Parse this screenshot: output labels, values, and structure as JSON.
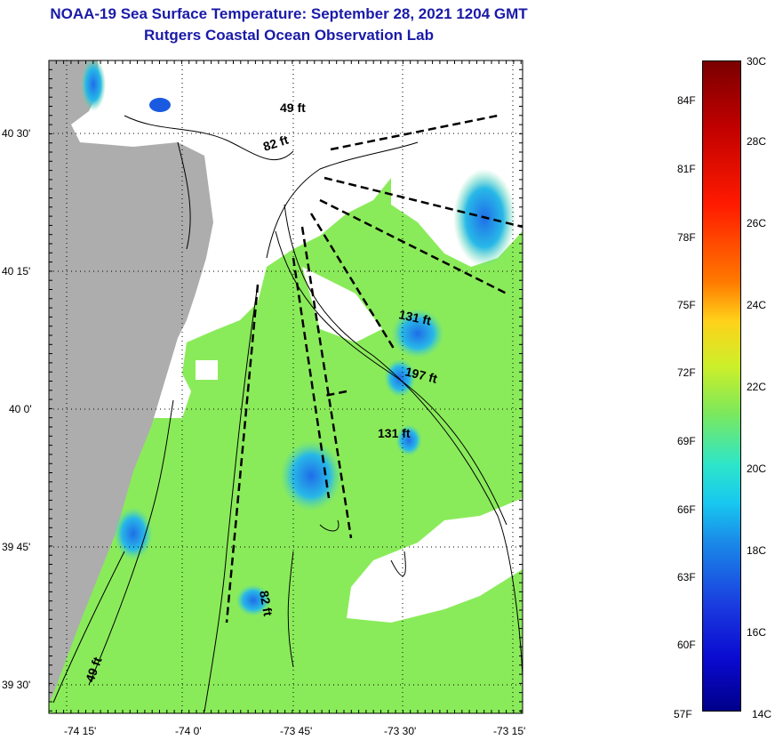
{
  "title": {
    "line1": "NOAA-19 Sea Surface Temperature:  September 28, 2021 1204 GMT",
    "line2": "Rutgers Coastal Ocean Observation Lab"
  },
  "map": {
    "lat_labels": [
      "40 30'",
      "40 15'",
      "40 0'",
      "39 45'",
      "39 30'"
    ],
    "lon_labels": [
      "-74 15'",
      "-74 0'",
      "-73 45'",
      "-73 30'",
      "-73 15'"
    ],
    "depth_labels": [
      "49 ft",
      "82 ft",
      "131 ft",
      "197 ft",
      "131 ft",
      "82 ft",
      "49 ft"
    ]
  },
  "colorbar": {
    "celsius": [
      "30C",
      "28C",
      "26C",
      "24C",
      "22C",
      "20C",
      "18C",
      "16C",
      "14C"
    ],
    "fahrenheit": [
      "84F",
      "81F",
      "78F",
      "75F",
      "72F",
      "69F",
      "66F",
      "63F",
      "60F",
      "57F"
    ]
  }
}
